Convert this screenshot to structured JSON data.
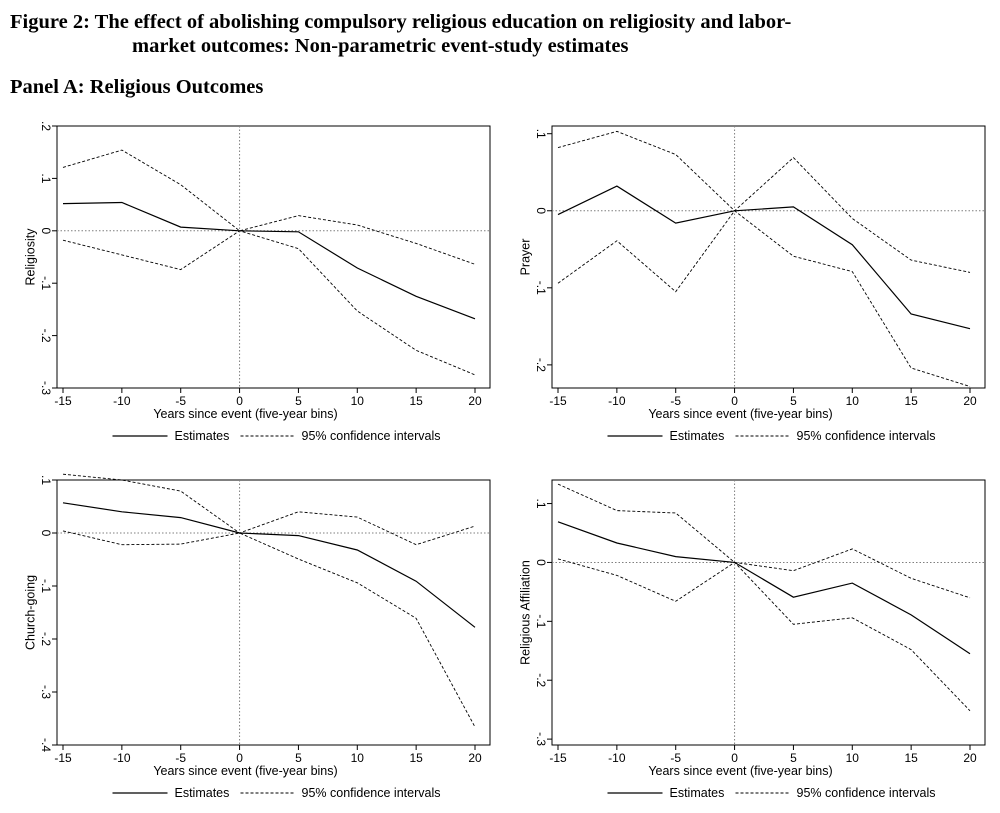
{
  "figure": {
    "title_line1": "Figure 2: The effect of abolishing compulsory religious education on religiosity and labor-",
    "title_line2": "market outcomes: Non-parametric event-study estimates",
    "panel_title": "Panel A: Religious Outcomes"
  },
  "colors": {
    "line": "#000000",
    "reference": "#7f7f7f",
    "background": "#ffffff"
  },
  "chart_data": [
    {
      "type": "line",
      "ylabel": "Religiosity",
      "xlabel": "Years since event (five-year bins)",
      "x": [
        -15,
        -10,
        -5,
        0,
        5,
        10,
        15,
        20
      ],
      "xticks": [
        "-15",
        "-10",
        "-5",
        "0",
        "5",
        "10",
        "15",
        "20"
      ],
      "xlim": [
        -15,
        20
      ],
      "ylim": [
        -0.3,
        0.2
      ],
      "yticks": [
        -0.3,
        -0.2,
        -0.1,
        0,
        0.1,
        0.2
      ],
      "ytick_labels": [
        "-.3",
        "-.2",
        "-.1",
        "0",
        ".1",
        ".2"
      ],
      "series": [
        {
          "name": "Estimates",
          "style": "solid",
          "values": [
            0.052,
            0.054,
            0.007,
            0.0,
            -0.002,
            -0.071,
            -0.125,
            -0.168
          ]
        },
        {
          "name": "95% confidence intervals",
          "style": "dashed",
          "values": [
            0.121,
            0.154,
            0.088,
            0.0,
            0.029,
            0.011,
            -0.024,
            -0.064
          ]
        },
        {
          "name": "",
          "style": "dashed",
          "values": [
            -0.018,
            -0.046,
            -0.074,
            0.0,
            -0.034,
            -0.153,
            -0.228,
            -0.275
          ]
        }
      ],
      "legend": [
        "Estimates",
        "95% confidence intervals"
      ],
      "reference_lines": {
        "x": 0,
        "y": 0
      }
    },
    {
      "type": "line",
      "ylabel": "Prayer",
      "xlabel": "Years since event (five-year bins)",
      "x": [
        -15,
        -10,
        -5,
        0,
        5,
        10,
        15,
        20
      ],
      "xticks": [
        "-15",
        "-10",
        "-5",
        "0",
        "5",
        "10",
        "15",
        "20"
      ],
      "xlim": [
        -15,
        20
      ],
      "ylim": [
        -0.23,
        0.11
      ],
      "yticks": [
        -0.2,
        -0.1,
        0,
        0.1
      ],
      "ytick_labels": [
        "-.2",
        "-.1",
        "0",
        ".1"
      ],
      "series": [
        {
          "name": "Estimates",
          "style": "solid",
          "values": [
            -0.005,
            0.032,
            -0.016,
            0.0,
            0.005,
            -0.044,
            -0.134,
            -0.153
          ]
        },
        {
          "name": "95% confidence intervals",
          "style": "dashed",
          "values": [
            0.082,
            0.103,
            0.073,
            0.0,
            0.069,
            -0.01,
            -0.064,
            -0.08
          ]
        },
        {
          "name": "",
          "style": "dashed",
          "values": [
            -0.094,
            -0.039,
            -0.105,
            0.0,
            -0.059,
            -0.079,
            -0.204,
            -0.228
          ]
        }
      ],
      "legend": [
        "Estimates",
        "95% confidence intervals"
      ],
      "reference_lines": {
        "x": 0,
        "y": 0
      }
    },
    {
      "type": "line",
      "ylabel": "Church-going",
      "xlabel": "Years since event (five-year bins)",
      "x": [
        -15,
        -10,
        -5,
        0,
        5,
        10,
        15,
        20
      ],
      "xticks": [
        "-15",
        "-10",
        "-5",
        "0",
        "5",
        "10",
        "15",
        "20"
      ],
      "xlim": [
        -15,
        20
      ],
      "ylim": [
        -0.4,
        0.1
      ],
      "yticks": [
        -0.4,
        -0.3,
        -0.2,
        -0.1,
        0,
        0.1
      ],
      "ytick_labels": [
        "-.4",
        "-.3",
        "-.2",
        "-.1",
        "0",
        ".1"
      ],
      "series": [
        {
          "name": "Estimates",
          "style": "solid",
          "values": [
            0.057,
            0.04,
            0.029,
            0.0,
            -0.005,
            -0.032,
            -0.091,
            -0.178
          ]
        },
        {
          "name": "95% confidence intervals",
          "style": "dashed",
          "values": [
            0.111,
            0.1,
            0.079,
            0.0,
            0.04,
            0.03,
            -0.022,
            0.013
          ]
        },
        {
          "name": "",
          "style": "dashed",
          "values": [
            0.004,
            -0.022,
            -0.021,
            0.0,
            -0.049,
            -0.094,
            -0.161,
            -0.366
          ]
        }
      ],
      "legend": [
        "Estimates",
        "95% confidence intervals"
      ],
      "reference_lines": {
        "x": 0,
        "y": 0
      }
    },
    {
      "type": "line",
      "ylabel": "Religious Affiliation",
      "xlabel": "Years since event (five-year bins)",
      "x": [
        -15,
        -10,
        -5,
        0,
        5,
        10,
        15,
        20
      ],
      "xticks": [
        "-15",
        "-10",
        "-5",
        "0",
        "5",
        "10",
        "15",
        "20"
      ],
      "xlim": [
        -15,
        20
      ],
      "ylim": [
        -0.31,
        0.14
      ],
      "yticks": [
        -0.3,
        -0.2,
        -0.1,
        0,
        0.1
      ],
      "ytick_labels": [
        "-.3",
        "-.2",
        "-.1",
        "0",
        ".1"
      ],
      "series": [
        {
          "name": "Estimates",
          "style": "solid",
          "values": [
            0.069,
            0.033,
            0.01,
            0.0,
            -0.059,
            -0.035,
            -0.089,
            -0.155
          ]
        },
        {
          "name": "95% confidence intervals",
          "style": "dashed",
          "values": [
            0.133,
            0.088,
            0.084,
            0.0,
            -0.014,
            0.023,
            -0.027,
            -0.06
          ]
        },
        {
          "name": "",
          "style": "dashed",
          "values": [
            0.006,
            -0.022,
            -0.066,
            0.0,
            -0.105,
            -0.094,
            -0.148,
            -0.252
          ]
        }
      ],
      "legend": [
        "Estimates",
        "95% confidence intervals"
      ],
      "reference_lines": {
        "x": 0,
        "y": 0
      }
    }
  ]
}
